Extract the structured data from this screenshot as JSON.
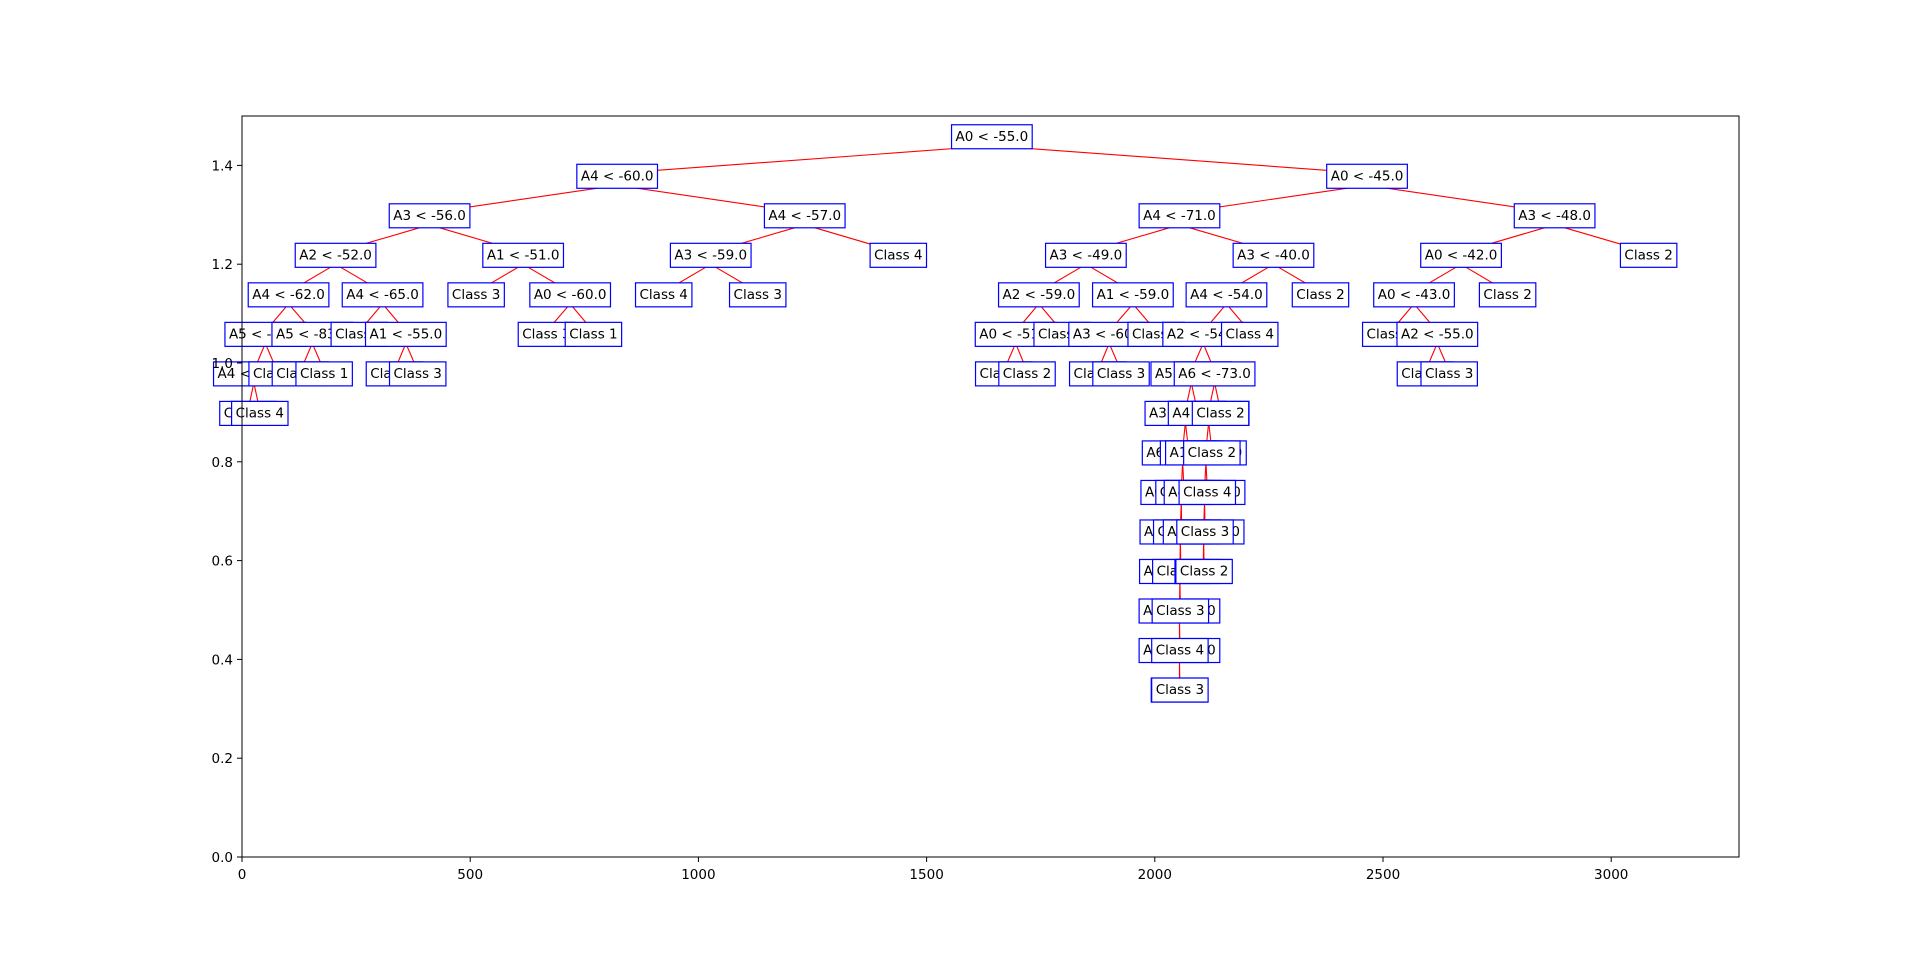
{
  "chart_data": {
    "type": "tree",
    "title": "",
    "xlabel": "",
    "ylabel": "",
    "xlim": [
      0,
      3280
    ],
    "ylim": [
      0,
      1.5
    ],
    "xticks": [
      0,
      500,
      1000,
      1500,
      2000,
      2500,
      3000
    ],
    "yticks": [
      0.0,
      0.2,
      0.4,
      0.6,
      0.8,
      1.0,
      1.2,
      1.4
    ],
    "ytick_labels": [
      "0.0",
      "0.2",
      "0.4",
      "0.6",
      "0.8",
      "1.0",
      "1.2",
      "1.4"
    ],
    "grid": false,
    "colors": {
      "edge": "#ff0000",
      "box": "#0000ff",
      "frame": "#000000"
    },
    "nodes": [
      {
        "id": "n0",
        "label": "A0 < -55.0",
        "x": 1643,
        "y": 1.46
      },
      {
        "id": "n1",
        "label": "A4 < -60.0",
        "x": 822,
        "y": 1.38,
        "parent": "n0"
      },
      {
        "id": "n2",
        "label": "A0 < -45.0",
        "x": 2465,
        "y": 1.38,
        "parent": "n0"
      },
      {
        "id": "n3",
        "label": "A3 < -56.0",
        "x": 411,
        "y": 1.3,
        "parent": "n1"
      },
      {
        "id": "n4",
        "label": "A4 < -57.0",
        "x": 1233,
        "y": 1.3,
        "parent": "n1"
      },
      {
        "id": "n5",
        "label": "A4 < -71.0",
        "x": 2054,
        "y": 1.3,
        "parent": "n2"
      },
      {
        "id": "n6",
        "label": "A3 < -48.0",
        "x": 2876,
        "y": 1.3,
        "parent": "n2"
      },
      {
        "id": "n7",
        "label": "A2 < -52.0",
        "x": 205,
        "y": 1.22,
        "parent": "n3"
      },
      {
        "id": "n8",
        "label": "A1 < -51.0",
        "x": 616,
        "y": 1.22,
        "parent": "n3"
      },
      {
        "id": "n9",
        "label": "A3 < -59.0",
        "x": 1027,
        "y": 1.22,
        "parent": "n4"
      },
      {
        "id": "n10",
        "label": "Class 4",
        "x": 1438,
        "y": 1.22,
        "parent": "n4"
      },
      {
        "id": "n11",
        "label": "A3 < -49.0",
        "x": 1849,
        "y": 1.22,
        "parent": "n5"
      },
      {
        "id": "n12",
        "label": "A3 < -40.0",
        "x": 2260,
        "y": 1.22,
        "parent": "n5"
      },
      {
        "id": "n13",
        "label": "A0 < -42.0",
        "x": 2671,
        "y": 1.22,
        "parent": "n6"
      },
      {
        "id": "n14",
        "label": "Class 2",
        "x": 3082,
        "y": 1.22,
        "parent": "n6"
      },
      {
        "id": "n15",
        "label": "A4 < -62.0",
        "x": 102,
        "y": 1.14,
        "parent": "n7"
      },
      {
        "id": "n16",
        "label": "A4 < -65.0",
        "x": 308,
        "y": 1.14,
        "parent": "n7"
      },
      {
        "id": "n17",
        "label": "Class 3",
        "x": 513,
        "y": 1.14,
        "parent": "n8"
      },
      {
        "id": "n18",
        "label": "A0 < -60.0",
        "x": 719,
        "y": 1.14,
        "parent": "n8"
      },
      {
        "id": "n19",
        "label": "Class 4",
        "x": 924,
        "y": 1.14,
        "parent": "n9"
      },
      {
        "id": "n20",
        "label": "Class 3",
        "x": 1130,
        "y": 1.14,
        "parent": "n9"
      },
      {
        "id": "n21",
        "label": "A2 < -59.0",
        "x": 1746,
        "y": 1.14,
        "parent": "n11"
      },
      {
        "id": "n22",
        "label": "A1 < -59.0",
        "x": 1952,
        "y": 1.14,
        "parent": "n11"
      },
      {
        "id": "n23",
        "label": "A4 < -54.0",
        "x": 2157,
        "y": 1.14,
        "parent": "n12"
      },
      {
        "id": "n24",
        "label": "Class 2",
        "x": 2363,
        "y": 1.14,
        "parent": "n12"
      },
      {
        "id": "n25",
        "label": "A0 < -43.0",
        "x": 2568,
        "y": 1.14,
        "parent": "n13"
      },
      {
        "id": "n26",
        "label": "Class 2",
        "x": 2773,
        "y": 1.14,
        "parent": "n13"
      },
      {
        "id": "n27",
        "label": "A5 < -85.0",
        "x": 51,
        "y": 1.06,
        "parent": "n15"
      },
      {
        "id": "n28",
        "label": "A5 < -83.0",
        "x": 154,
        "y": 1.06,
        "parent": "n15"
      },
      {
        "id": "n29",
        "label": "Class 1",
        "x": 257,
        "y": 1.06,
        "parent": "n16"
      },
      {
        "id": "n30",
        "label": "A1 < -55.0",
        "x": 359,
        "y": 1.06,
        "parent": "n16"
      },
      {
        "id": "n31",
        "label": "Class 3",
        "x": 667,
        "y": 1.06,
        "parent": "n18"
      },
      {
        "id": "n32",
        "label": "Class 1",
        "x": 770,
        "y": 1.06,
        "parent": "n18"
      },
      {
        "id": "n33",
        "label": "A0 < -51.0",
        "x": 1695,
        "y": 1.06,
        "parent": "n21"
      },
      {
        "id": "n34",
        "label": "Class 3",
        "x": 1797,
        "y": 1.06,
        "parent": "n21"
      },
      {
        "id": "n35",
        "label": "A3 < -60.0",
        "x": 1900,
        "y": 1.06,
        "parent": "n22"
      },
      {
        "id": "n36",
        "label": "Class 2",
        "x": 2003,
        "y": 1.06,
        "parent": "n22"
      },
      {
        "id": "n37",
        "label": "A2 < -54.0",
        "x": 2106,
        "y": 1.06,
        "parent": "n23"
      },
      {
        "id": "n38",
        "label": "Class 4",
        "x": 2208,
        "y": 1.06,
        "parent": "n23"
      },
      {
        "id": "n39",
        "label": "Class 2",
        "x": 2517,
        "y": 1.06,
        "parent": "n25"
      },
      {
        "id": "n40",
        "label": "A2 < -55.0",
        "x": 2619,
        "y": 1.06,
        "parent": "n25"
      },
      {
        "id": "n41",
        "label": "A4 < -66.0",
        "x": 26,
        "y": 0.98,
        "parent": "n27"
      },
      {
        "id": "n42",
        "label": "Class 3",
        "x": 77,
        "y": 0.98,
        "parent": "n27"
      },
      {
        "id": "n43",
        "label": "Class 4",
        "x": 128,
        "y": 0.98,
        "parent": "n28"
      },
      {
        "id": "n44",
        "label": "Class 1",
        "x": 180,
        "y": 0.98,
        "parent": "n28"
      },
      {
        "id": "n45",
        "label": "Class 4",
        "x": 334,
        "y": 0.98,
        "parent": "n30"
      },
      {
        "id": "n46",
        "label": "Class 3",
        "x": 385,
        "y": 0.98,
        "parent": "n30"
      },
      {
        "id": "n47",
        "label": "Class 3",
        "x": 1669,
        "y": 0.98,
        "parent": "n33"
      },
      {
        "id": "n48",
        "label": "Class 2",
        "x": 1720,
        "y": 0.98,
        "parent": "n33"
      },
      {
        "id": "n49",
        "label": "Class 2",
        "x": 1875,
        "y": 0.98,
        "parent": "n35"
      },
      {
        "id": "n50",
        "label": "Class 3",
        "x": 1926,
        "y": 0.98,
        "parent": "n35"
      },
      {
        "id": "n51",
        "label": "A5 < -71.0",
        "x": 2080,
        "y": 0.98,
        "parent": "n37"
      },
      {
        "id": "n52",
        "label": "A6 < -73.0",
        "x": 2131,
        "y": 0.98,
        "parent": "n37"
      },
      {
        "id": "n53",
        "label": "Class 2",
        "x": 2593,
        "y": 0.98,
        "parent": "n40"
      },
      {
        "id": "n54",
        "label": "Class 3",
        "x": 2645,
        "y": 0.98,
        "parent": "n40"
      },
      {
        "id": "n55",
        "label": "Class 1",
        "x": 13,
        "y": 0.9,
        "parent": "n41"
      },
      {
        "id": "n56",
        "label": "Class 4",
        "x": 39,
        "y": 0.9,
        "parent": "n41"
      },
      {
        "id": "n57",
        "label": "A3 < -64.0",
        "x": 2067,
        "y": 0.9,
        "parent": "n51"
      },
      {
        "id": "n58",
        "label": "Class 2",
        "x": 2093,
        "y": 0.9,
        "parent": "n51"
      },
      {
        "id": "n59",
        "label": "A4 < -58.0",
        "x": 2118,
        "y": 0.9,
        "parent": "n52"
      },
      {
        "id": "n60",
        "label": "Class 2",
        "x": 2144,
        "y": 0.9,
        "parent": "n52"
      },
      {
        "id": "n61",
        "label": "A6 < -67.0",
        "x": 2061,
        "y": 0.82,
        "parent": "n57"
      },
      {
        "id": "n62",
        "label": "Class 3",
        "x": 2074,
        "y": 0.82,
        "parent": "n57"
      },
      {
        "id": "n63",
        "label": "A1 < -62.0",
        "x": 2112,
        "y": 0.82,
        "parent": "n59"
      },
      {
        "id": "n64",
        "label": "Class 2",
        "x": 2125,
        "y": 0.82,
        "parent": "n59"
      },
      {
        "id": "n65",
        "label": "A0 < -48.0",
        "x": 2058,
        "y": 0.74,
        "parent": "n61"
      },
      {
        "id": "n66",
        "label": "Class 3",
        "x": 2064,
        "y": 0.74,
        "parent": "n61"
      },
      {
        "id": "n67",
        "label": "A4 < -64.0",
        "x": 2109,
        "y": 0.74,
        "parent": "n63"
      },
      {
        "id": "n68",
        "label": "Class 4",
        "x": 2115,
        "y": 0.74,
        "parent": "n63"
      },
      {
        "id": "n69",
        "label": "A0 < -49.0",
        "x": 2056,
        "y": 0.66,
        "parent": "n65"
      },
      {
        "id": "n70",
        "label": "Class 2",
        "x": 2059,
        "y": 0.66,
        "parent": "n65"
      },
      {
        "id": "n71",
        "label": "A2 < -58.0",
        "x": 2107,
        "y": 0.66,
        "parent": "n67"
      },
      {
        "id": "n72",
        "label": "Class 3",
        "x": 2110,
        "y": 0.66,
        "parent": "n67"
      },
      {
        "id": "n73",
        "label": "A1 < -50.0",
        "x": 2055,
        "y": 0.58,
        "parent": "n69"
      },
      {
        "id": "n74",
        "label": "Class 3",
        "x": 2057,
        "y": 0.58,
        "parent": "n69"
      },
      {
        "id": "n75",
        "label": "Class 3",
        "x": 2106,
        "y": 0.58,
        "parent": "n71"
      },
      {
        "id": "n76",
        "label": "Class 2",
        "x": 2108,
        "y": 0.58,
        "parent": "n71"
      },
      {
        "id": "n77",
        "label": "A2 < -53.0",
        "x": 2054,
        "y": 0.5,
        "parent": "n73"
      },
      {
        "id": "n78",
        "label": "Class 3",
        "x": 2056,
        "y": 0.5,
        "parent": "n73"
      },
      {
        "id": "n79",
        "label": "A0 < -47.0",
        "x": 2054,
        "y": 0.42,
        "parent": "n77"
      },
      {
        "id": "n80",
        "label": "Class 4",
        "x": 2055,
        "y": 0.42,
        "parent": "n77"
      },
      {
        "id": "n81",
        "label": "Class 2",
        "x": 2054,
        "y": 0.34,
        "parent": "n79"
      },
      {
        "id": "n82",
        "label": "Class 3",
        "x": 2055,
        "y": 0.34,
        "parent": "n79"
      }
    ]
  }
}
